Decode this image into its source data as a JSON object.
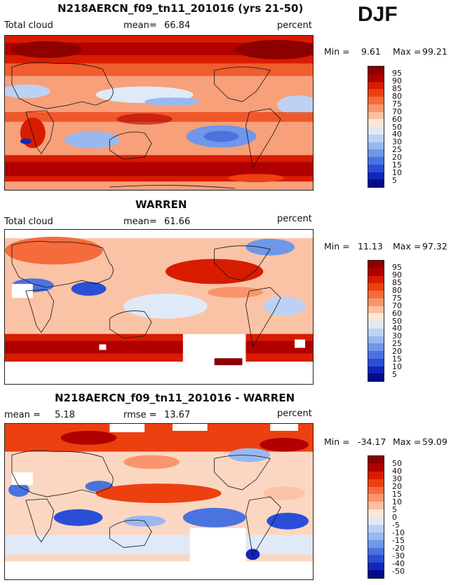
{
  "season": "DJF",
  "panels": [
    {
      "id": "model",
      "title": "N218AERCN_f09_tn11_201016 (yrs 21-50)",
      "left_label": "Total cloud",
      "stat1_label": "mean=",
      "stat1_value": "66.84",
      "stat2_label": "",
      "stat2_value": "",
      "units": "percent",
      "min_label": "Min =",
      "min_value": "9.61",
      "max_label": "Max =",
      "max_value": "99.21",
      "colorbar_ticks": [
        "95",
        "90",
        "85",
        "80",
        "75",
        "70",
        "60",
        "50",
        "40",
        "30",
        "25",
        "20",
        "15",
        "10",
        "5"
      ],
      "colors": [
        "#8c0000",
        "#b00000",
        "#d81c00",
        "#ec4010",
        "#f56b3c",
        "#f9956c",
        "#fcbfa0",
        "#fde7d6",
        "#dfe9f8",
        "#bcd2f4",
        "#98b8f0",
        "#6f97ea",
        "#4a73e0",
        "#2a4ed6",
        "#1226b8",
        "#040c8c"
      ]
    },
    {
      "id": "obs",
      "title": "WARREN",
      "left_label": "Total cloud",
      "stat1_label": "mean=",
      "stat1_value": "61.66",
      "stat2_label": "",
      "stat2_value": "",
      "units": "percent",
      "min_label": "Min =",
      "min_value": "11.13",
      "max_label": "Max =",
      "max_value": "97.32",
      "colorbar_ticks": [
        "95",
        "90",
        "85",
        "80",
        "75",
        "70",
        "60",
        "50",
        "40",
        "30",
        "25",
        "20",
        "15",
        "10",
        "5"
      ],
      "colors": [
        "#8c0000",
        "#b00000",
        "#d81c00",
        "#ec4010",
        "#f56b3c",
        "#f9956c",
        "#fcbfa0",
        "#fde7d6",
        "#dfe9f8",
        "#bcd2f4",
        "#98b8f0",
        "#6f97ea",
        "#4a73e0",
        "#2a4ed6",
        "#1226b8",
        "#040c8c"
      ]
    },
    {
      "id": "diff",
      "title": "N218AERCN_f09_tn11_201016 - WARREN",
      "left_label": "",
      "stat1_label": "mean =",
      "stat1_value": "5.18",
      "stat2_label": "rmse =",
      "stat2_value": "13.67",
      "units": "percent",
      "min_label": "Min =",
      "min_value": "-34.17",
      "max_label": "Max =",
      "max_value": "59.09",
      "colorbar_ticks": [
        "50",
        "40",
        "30",
        "20",
        "15",
        "10",
        "5",
        "0",
        "-5",
        "-10",
        "-15",
        "-20",
        "-30",
        "-40",
        "-50"
      ],
      "colors": [
        "#8c0000",
        "#b00000",
        "#d81c00",
        "#ec4010",
        "#f56b3c",
        "#f9956c",
        "#fcbfa0",
        "#fde7d6",
        "#dfe9f8",
        "#bcd2f4",
        "#98b8f0",
        "#6f97ea",
        "#4a73e0",
        "#2a4ed6",
        "#1226b8",
        "#040c8c"
      ]
    }
  ],
  "chart_data": [
    {
      "type": "heatmap",
      "title": "N218AERCN_f09_tn11_201016 (yrs 21-50)",
      "variable": "Total cloud",
      "units": "percent",
      "mean": 66.84,
      "min": 9.61,
      "max": 99.21,
      "levels": [
        5,
        10,
        15,
        20,
        25,
        30,
        40,
        50,
        60,
        70,
        75,
        80,
        85,
        90,
        95
      ]
    },
    {
      "type": "heatmap",
      "title": "WARREN",
      "variable": "Total cloud",
      "units": "percent",
      "mean": 61.66,
      "min": 11.13,
      "max": 97.32,
      "levels": [
        5,
        10,
        15,
        20,
        25,
        30,
        40,
        50,
        60,
        70,
        75,
        80,
        85,
        90,
        95
      ]
    },
    {
      "type": "heatmap",
      "title": "N218AERCN_f09_tn11_201016 - WARREN",
      "units": "percent",
      "mean": 5.18,
      "rmse": 13.67,
      "min": -34.17,
      "max": 59.09,
      "levels": [
        -50,
        -40,
        -30,
        -20,
        -15,
        -10,
        -5,
        0,
        5,
        10,
        15,
        20,
        30,
        40,
        50
      ]
    }
  ]
}
